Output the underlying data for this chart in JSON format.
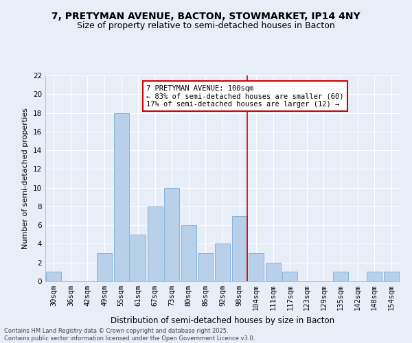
{
  "title": "7, PRETYMAN AVENUE, BACTON, STOWMARKET, IP14 4NY",
  "subtitle": "Size of property relative to semi-detached houses in Bacton",
  "xlabel": "Distribution of semi-detached houses by size in Bacton",
  "ylabel": "Number of semi-detached properties",
  "categories": [
    "30sqm",
    "36sqm",
    "42sqm",
    "49sqm",
    "55sqm",
    "61sqm",
    "67sqm",
    "73sqm",
    "80sqm",
    "86sqm",
    "92sqm",
    "98sqm",
    "104sqm",
    "111sqm",
    "117sqm",
    "123sqm",
    "129sqm",
    "135sqm",
    "142sqm",
    "148sqm",
    "154sqm"
  ],
  "values": [
    1,
    0,
    0,
    3,
    18,
    5,
    8,
    10,
    6,
    3,
    4,
    7,
    3,
    2,
    1,
    0,
    0,
    1,
    0,
    1,
    1
  ],
  "bar_color": "#b8d0ea",
  "bar_edge_color": "#7aadd4",
  "background_color": "#e8eef8",
  "grid_color": "#ffffff",
  "redline_index": 11,
  "redline_color": "#cc0000",
  "annotation_text": "7 PRETYMAN AVENUE: 100sqm\n← 83% of semi-detached houses are smaller (60)\n17% of semi-detached houses are larger (12) →",
  "annotation_box_color": "#ffffff",
  "annotation_box_edge": "#cc0000",
  "footer_line1": "Contains HM Land Registry data © Crown copyright and database right 2025.",
  "footer_line2": "Contains public sector information licensed under the Open Government Licence v3.0.",
  "ylim": [
    0,
    22
  ],
  "yticks": [
    0,
    2,
    4,
    6,
    8,
    10,
    12,
    14,
    16,
    18,
    20,
    22
  ],
  "title_fontsize": 10,
  "subtitle_fontsize": 9,
  "tick_fontsize": 7.5,
  "ylabel_fontsize": 8,
  "xlabel_fontsize": 8.5,
  "annotation_fontsize": 7.5,
  "footer_fontsize": 6
}
